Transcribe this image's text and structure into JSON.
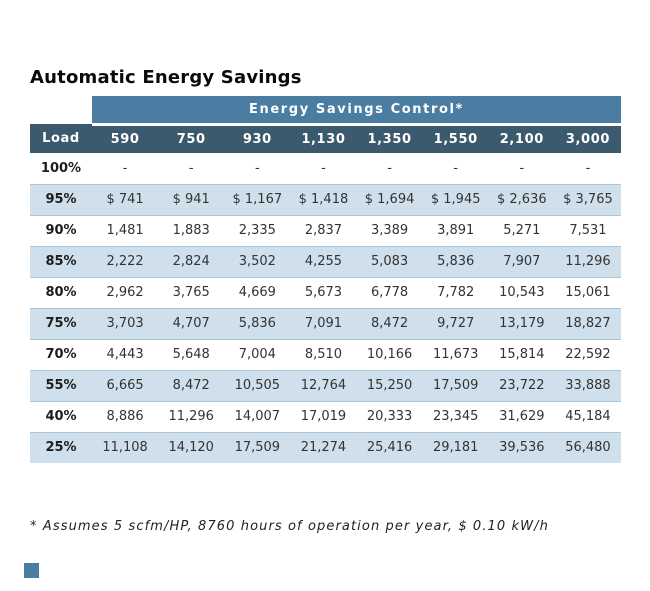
{
  "page": {
    "title": "Automatic Energy Savings",
    "footnote": "* Assumes 5 scfm/HP, 8760 hours of operation per year, $ 0.10 kW/h"
  },
  "chart_data": {
    "type": "table",
    "title": "Energy Savings Control*",
    "columns": [
      "Load",
      "590",
      "750",
      "930",
      "1,130",
      "1,350",
      "1,550",
      "2,100",
      "3,000"
    ],
    "rows": [
      {
        "load": "100%",
        "values": [
          "-",
          "-",
          "-",
          "-",
          "-",
          "-",
          "-",
          "-"
        ]
      },
      {
        "load": "95%",
        "values": [
          "$ 741",
          "$ 941",
          "$ 1,167",
          "$ 1,418",
          "$ 1,694",
          "$ 1,945",
          "$ 2,636",
          "$ 3,765"
        ]
      },
      {
        "load": "90%",
        "values": [
          "1,481",
          "1,883",
          "2,335",
          "2,837",
          "3,389",
          "3,891",
          "5,271",
          "7,531"
        ]
      },
      {
        "load": "85%",
        "values": [
          "2,222",
          "2,824",
          "3,502",
          "4,255",
          "5,083",
          "5,836",
          "7,907",
          "11,296"
        ]
      },
      {
        "load": "80%",
        "values": [
          "2,962",
          "3,765",
          "4,669",
          "5,673",
          "6,778",
          "7,782",
          "10,543",
          "15,061"
        ]
      },
      {
        "load": "75%",
        "values": [
          "3,703",
          "4,707",
          "5,836",
          "7,091",
          "8,472",
          "9,727",
          "13,179",
          "18,827"
        ]
      },
      {
        "load": "70%",
        "values": [
          "4,443",
          "5,648",
          "7,004",
          "8,510",
          "10,166",
          "11,673",
          "15,814",
          "22,592"
        ]
      },
      {
        "load": "55%",
        "values": [
          "6,665",
          "8,472",
          "10,505",
          "12,764",
          "15,250",
          "17,509",
          "23,722",
          "33,888"
        ]
      },
      {
        "load": "40%",
        "values": [
          "8,886",
          "11,296",
          "14,007",
          "17,019",
          "20,333",
          "23,345",
          "31,629",
          "45,184"
        ]
      },
      {
        "load": "25%",
        "values": [
          "11,108",
          "14,120",
          "17,509",
          "21,274",
          "25,416",
          "29,181",
          "39,536",
          "56,480"
        ]
      }
    ]
  },
  "colors": {
    "band": "#4a7da1",
    "header": "#3c5a6e",
    "row_alt": "#cfe0ec",
    "divider": "#a9c8da",
    "accent_square": "#4a7da1"
  }
}
